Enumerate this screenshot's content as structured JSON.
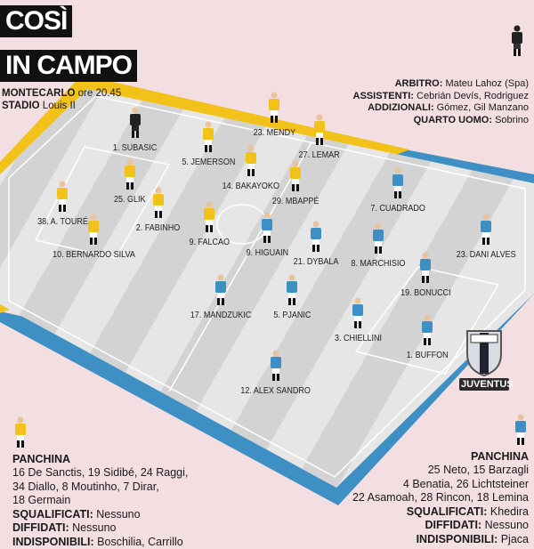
{
  "header": {
    "title_line1": "COSÌ",
    "title_line2": "IN CAMPO",
    "venue_city": "MONTECARLO",
    "venue_time": "ore 20.45",
    "stadium_label": "STADIO",
    "stadium_name": "Louis II"
  },
  "officials": [
    {
      "role": "ARBITRO:",
      "name": "Mateu Lahoz (Spa)"
    },
    {
      "role": "ASSISTENTI:",
      "name": "Cebrián Devís, Rodriguez"
    },
    {
      "role": "ADDIZIONALI:",
      "name": "Gómez, Gil Manzano"
    },
    {
      "role": "QUARTO UOMO:",
      "name": "Sobrino"
    }
  ],
  "colors": {
    "monaco": "#f2c21b",
    "juventus": "#3d8fc4",
    "pitch_light": "#e6e6e6",
    "pitch_dark": "#d2d2d2",
    "background": "#f3dfe2"
  },
  "monaco_players": [
    "1. SUBASIC",
    "23. MENDY",
    "5. JEMERSON",
    "27. LEMAR",
    "14. BAKAYOKO",
    "25. GLIK",
    "29. MBAPPÉ",
    "38. A. TOURÉ",
    "2. FABINHO",
    "9. FALCAO",
    "10. BERNARDO SILVA"
  ],
  "juventus_players": [
    "7. CUADRADO",
    "23. DANI ALVES",
    "8. MARCHISIO",
    "21. DYBALA",
    "9. HIGUAIN",
    "19. BONUCCI",
    "17. MANDZUKIC",
    "5. PJANIC",
    "3. CHIELLINI",
    "1. BUFFON",
    "12. ALEX SANDRO"
  ],
  "juventus_logo": "JUVENTUS",
  "monaco_bench": {
    "title": "PANCHINA",
    "players": "16 De Sanctis, 19 Sidibé, 24 Raggi,",
    "players2": "34 Diallo, 8 Moutinho, 7 Dirar,",
    "players3": "18 Germain",
    "suspended_label": "SQUALIFICATI:",
    "suspended": "Nessuno",
    "warned_label": "DIFFIDATI:",
    "warned": "Nessuno",
    "unavailable_label": "INDISPONIBILI:",
    "unavailable": "Boschilia, Carrillo"
  },
  "juventus_bench": {
    "title": "PANCHINA",
    "players": "25 Neto, 15 Barzagli",
    "players2": "4 Benatia, 26 Lichtsteiner",
    "players3": "22 Asamoah, 28 Rincon, 18 Lemina",
    "suspended_label": "SQUALIFICATI:",
    "suspended": "Khedira",
    "warned_label": "DIFFIDATI:",
    "warned": "Nessuno",
    "unavailable_label": "INDISPONIBILI:",
    "unavailable": "Pjaca"
  }
}
